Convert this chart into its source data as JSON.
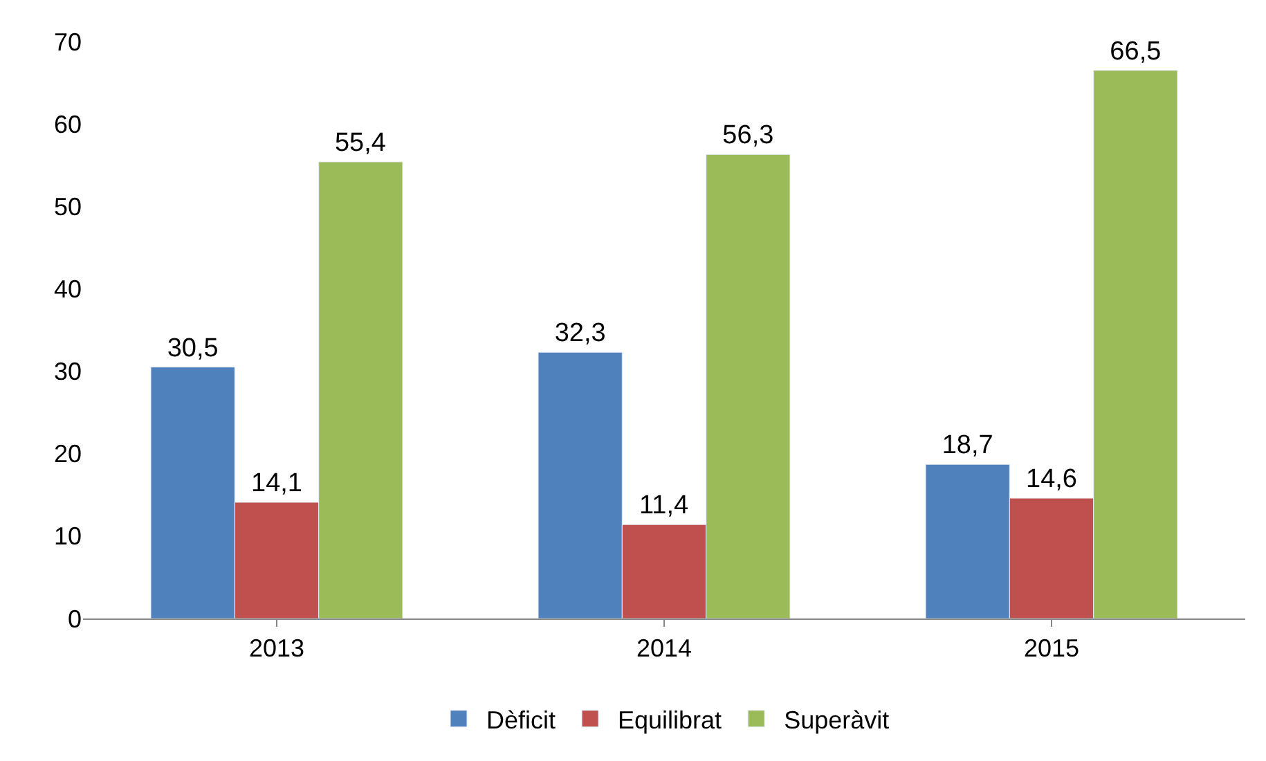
{
  "chart_data": {
    "type": "bar",
    "categories": [
      "2013",
      "2014",
      "2015"
    ],
    "series": [
      {
        "name": "Dèficit",
        "color": "#4f81bd",
        "values": [
          30.5,
          32.3,
          18.7
        ],
        "value_labels": [
          "30,5",
          "32,3",
          "18,7"
        ]
      },
      {
        "name": "Equilibrat",
        "color": "#c0504d",
        "values": [
          14.1,
          11.4,
          14.6
        ],
        "value_labels": [
          "14,1",
          "11,4",
          "14,6"
        ]
      },
      {
        "name": "Superàvit",
        "color": "#9bbb59",
        "values": [
          55.4,
          56.3,
          66.5
        ],
        "value_labels": [
          "55,4",
          "56,3",
          "66,5"
        ]
      }
    ],
    "ylim": [
      0,
      70
    ],
    "yticks": [
      0,
      10,
      20,
      30,
      40,
      50,
      60,
      70
    ],
    "legend": "bottom"
  }
}
